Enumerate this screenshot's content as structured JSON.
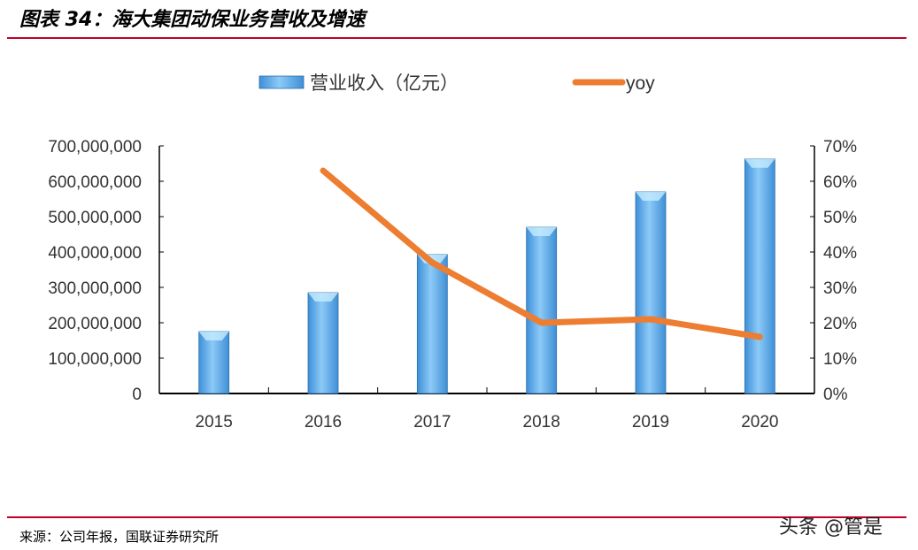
{
  "header": {
    "title": "图表 34：海大集团动保业务营收及增速"
  },
  "footer": {
    "source": "来源：公司年报，国联证券研究所",
    "watermark": "头条 @管是"
  },
  "colors": {
    "bar": "#5aa8ea",
    "line": "#ed7d31",
    "rule": "#c0002a"
  },
  "chart_data": {
    "type": "bar+line",
    "categories": [
      "2015",
      "2016",
      "2017",
      "2018",
      "2019",
      "2020"
    ],
    "series": [
      {
        "name": "营业收入（亿元）",
        "type": "bar",
        "axis": "left",
        "values": [
          175000000,
          285000000,
          393000000,
          470000000,
          570000000,
          663000000
        ]
      },
      {
        "name": "yoy",
        "type": "line",
        "axis": "right",
        "values": [
          null,
          63,
          37,
          20,
          21,
          16
        ]
      }
    ],
    "left_axis": {
      "ylim": [
        0,
        700000000
      ],
      "ticks": [
        "0",
        "100,000,000",
        "200,000,000",
        "300,000,000",
        "400,000,000",
        "500,000,000",
        "600,000,000",
        "700,000,000"
      ]
    },
    "right_axis": {
      "ylim": [
        0,
        70
      ],
      "ticks": [
        "0%",
        "10%",
        "20%",
        "30%",
        "40%",
        "50%",
        "60%",
        "70%"
      ]
    },
    "legend": "top"
  }
}
